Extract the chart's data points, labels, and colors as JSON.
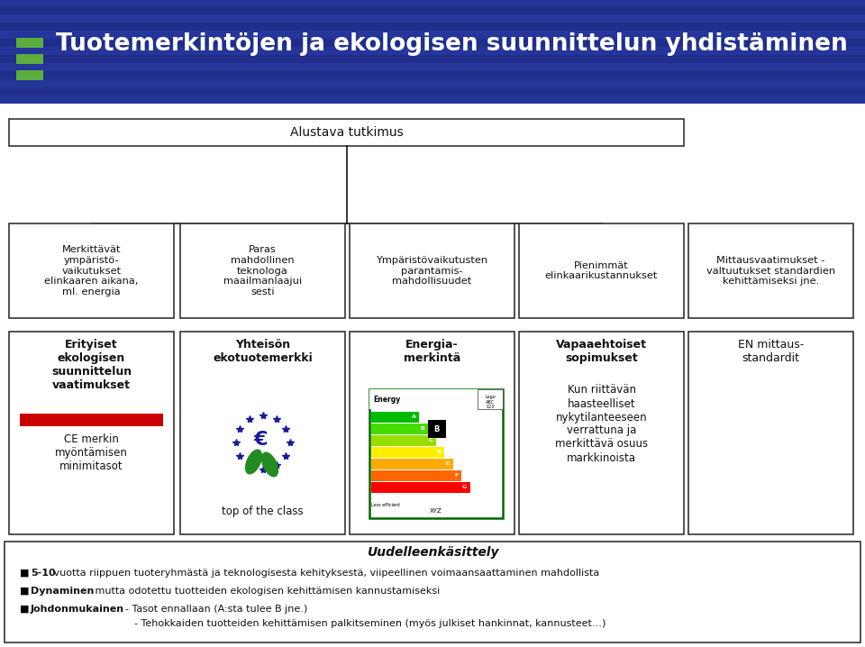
{
  "title": "Tuotemerkintöjen ja ekologisen suunnittelun yhdistäminen",
  "title_color": "#FFFFFF",
  "title_bg_color": "#1E2E8A",
  "title_stripe_color": "#2A3BA5",
  "green_rect_color": "#5BAD3E",
  "header_box": "Alustava tutkimus",
  "top_boxes": [
    "Merkittävät\nympäristö-\nvaikutukset\nelinkaaren aikana,\nml. energia",
    "Paras\nmahdollinen\nteknologa\nmaailmanlaajui\nsesti",
    "Ympäristövaikutusten\nparantamis-\nmahdollisuudet",
    "Pienimmät\nelinkaarikustannukset",
    "Mittausvaatimukset -\nvaltuutukset standardien\nkehittämiseksi jne."
  ],
  "bottom_boxes": [
    {
      "title": "Erityiset\nekologisen\nsuunnittelun\nvaatimukset",
      "subtitle": "CE merkin\nmyöntämisen\nminimitasot",
      "has_red_bar": true,
      "bold_title": true
    },
    {
      "title": "Yhteisön\nekotuotemerkki",
      "subtitle": "top of the class",
      "has_flower": true,
      "bold_title": true
    },
    {
      "title": "Energia-\nmerkintä",
      "subtitle": "",
      "has_energy_label": true,
      "bold_title": true
    },
    {
      "title": "Vapaaehtoiset\nsopimukset",
      "subtitle": "Kun riittävän\nhaasteelliset\nnykytilanteeseen\nverrattuna ja\nmerkittävä osuus\nmarkkinoista",
      "has_flower": false,
      "bold_title": true
    },
    {
      "title": "EN mittaus-\nstandardit",
      "subtitle": "",
      "has_flower": false,
      "bold_title": false
    }
  ],
  "footer_title": "Uudelleenkäsittely",
  "box_border_color": "#333333",
  "box_bg_color": "#FFFFFF",
  "text_color": "#111111",
  "red_bar_color": "#CC0000",
  "eu_star_color": "#1A1A9A",
  "eu_leaf_color": "#228B22"
}
